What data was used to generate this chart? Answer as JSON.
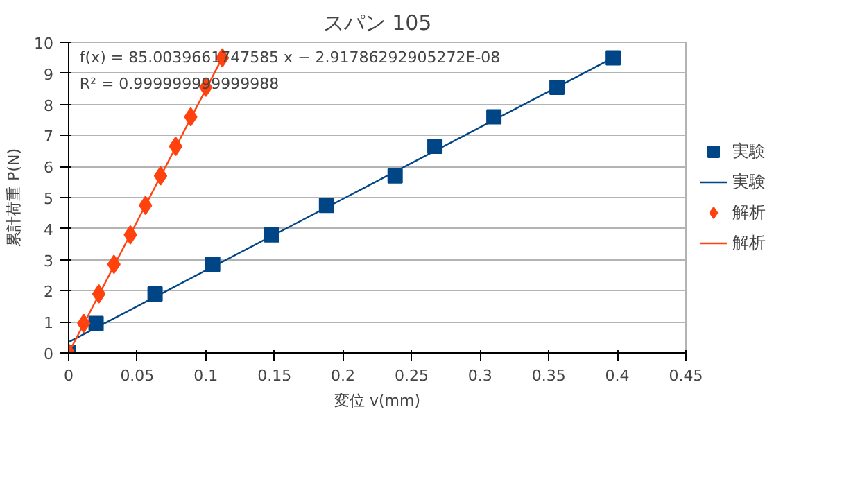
{
  "chart_data": {
    "type": "scatter",
    "title": "スパン 105",
    "xlabel": "変位 v(mm)",
    "ylabel": "累計荷重 P(N)",
    "xlim": [
      0,
      0.45
    ],
    "xticks": [
      0,
      0.05,
      0.1,
      0.15,
      0.2,
      0.25,
      0.3,
      0.35,
      0.4,
      0.45
    ],
    "ylim": [
      0,
      10
    ],
    "yticks": [
      0,
      1,
      2,
      3,
      4,
      5,
      6,
      7,
      8,
      9,
      10
    ],
    "grid": "y",
    "legend": "right",
    "annotations": [
      "f(x) = 85.0039661747585 x − 2.91786292905272E-08",
      "R² = 0.999999999999988"
    ],
    "series": [
      {
        "name": "実験",
        "marker": "square",
        "color": "#004586",
        "x": [
          0,
          0.02,
          0.063,
          0.105,
          0.148,
          0.188,
          0.238,
          0.267,
          0.31,
          0.356,
          0.397
        ],
        "values": [
          0,
          0.95,
          1.9,
          2.85,
          3.8,
          4.75,
          5.7,
          6.65,
          7.6,
          8.55,
          9.5
        ]
      },
      {
        "name": "実験",
        "type": "line",
        "color": "#004586",
        "x": [
          0,
          0.397
        ],
        "values": [
          0.35,
          9.5
        ]
      },
      {
        "name": "解析",
        "marker": "diamond",
        "color": "#ff420e",
        "x": [
          0,
          0.011,
          0.022,
          0.033,
          0.045,
          0.056,
          0.067,
          0.078,
          0.089,
          0.1,
          0.112
        ],
        "values": [
          0,
          0.95,
          1.9,
          2.85,
          3.8,
          4.75,
          5.7,
          6.65,
          7.6,
          8.55,
          9.5
        ]
      },
      {
        "name": "解析",
        "type": "line",
        "color": "#ff420e",
        "x": [
          0,
          0.112
        ],
        "values": [
          0,
          9.5
        ]
      }
    ]
  }
}
